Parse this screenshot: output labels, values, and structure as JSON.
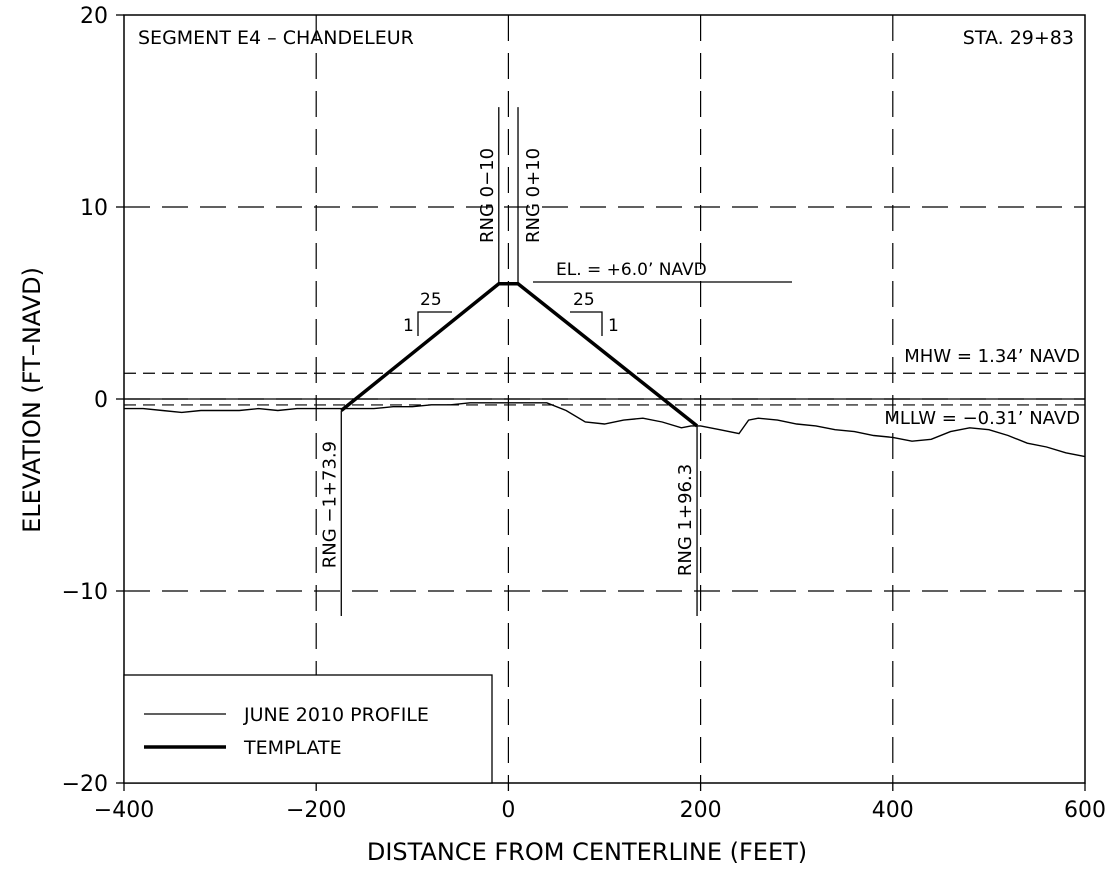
{
  "chart_data": {
    "type": "line",
    "title": "SEGMENT E4 – CHANDELEUR",
    "station": "STA. 29+83",
    "xlabel": "DISTANCE FROM CENTERLINE (FEET)",
    "ylabel": "ELEVATION (FT–NAVD)",
    "xlim": [
      -400,
      600
    ],
    "ylim": [
      -20,
      20
    ],
    "x_ticks": [
      -400,
      -200,
      0,
      200,
      400,
      600
    ],
    "y_ticks": [
      -20,
      -10,
      0,
      10,
      20
    ],
    "x_tick_labels": [
      "−400",
      "−200",
      "0",
      "200",
      "400",
      "600"
    ],
    "y_tick_labels": [
      "−20",
      "−10",
      "0",
      "10",
      "20"
    ],
    "grid": "dashed",
    "legend_position": "bottom-left",
    "series": [
      {
        "name": "JUNE 2010 PROFILE",
        "style": "thin",
        "x": [
          -400,
          -380,
          -360,
          -340,
          -320,
          -300,
          -280,
          -260,
          -240,
          -220,
          -200,
          -180,
          -160,
          -140,
          -120,
          -100,
          -80,
          -60,
          -40,
          -20,
          0,
          20,
          40,
          60,
          80,
          100,
          120,
          140,
          160,
          180,
          190,
          200,
          220,
          240,
          250,
          260,
          280,
          300,
          320,
          340,
          360,
          380,
          400,
          420,
          440,
          460,
          480,
          500,
          520,
          540,
          560,
          580,
          600
        ],
        "y": [
          -0.5,
          -0.5,
          -0.6,
          -0.7,
          -0.6,
          -0.6,
          -0.6,
          -0.5,
          -0.6,
          -0.5,
          -0.5,
          -0.5,
          -0.5,
          -0.5,
          -0.4,
          -0.4,
          -0.3,
          -0.3,
          -0.2,
          -0.2,
          -0.2,
          -0.2,
          -0.2,
          -0.6,
          -1.2,
          -1.3,
          -1.1,
          -1.0,
          -1.2,
          -1.5,
          -1.4,
          -1.4,
          -1.6,
          -1.8,
          -1.1,
          -1.0,
          -1.1,
          -1.3,
          -1.4,
          -1.6,
          -1.7,
          -1.9,
          -2.0,
          -2.2,
          -2.1,
          -1.7,
          -1.5,
          -1.6,
          -1.9,
          -2.3,
          -2.5,
          -2.8,
          -3.0
        ]
      },
      {
        "name": "TEMPLATE",
        "style": "thick",
        "x": [
          -173.9,
          -10,
          10,
          196.3
        ],
        "y": [
          -0.6,
          6.0,
          6.0,
          -1.4
        ]
      }
    ],
    "reference_lines": [
      {
        "label": "MHW = 1.34’ NAVD",
        "y": 1.34
      },
      {
        "label": "MLLW = −0.31’ NAVD",
        "y": -0.31
      }
    ],
    "annotations": {
      "crest_elevation": "EL. = +6.0’ NAVD",
      "slope_run": "25",
      "slope_rise": "1",
      "ranges": [
        {
          "label": "RNG 0−10",
          "x": -10
        },
        {
          "label": "RNG 0+10",
          "x": 10
        },
        {
          "label": "RNG −1+73.9",
          "x": -173.9
        },
        {
          "label": "RNG 1+96.3",
          "x": 196.3
        }
      ]
    }
  }
}
